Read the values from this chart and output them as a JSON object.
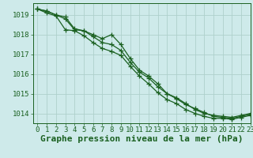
{
  "title": "Graphe pression niveau de la mer (hPa)",
  "background_color": "#ceeaea",
  "grid_color": "#aed0cc",
  "line_color": "#1a6020",
  "xlim": [
    -0.5,
    23
  ],
  "ylim": [
    1013.5,
    1019.6
  ],
  "yticks": [
    1014,
    1015,
    1016,
    1017,
    1018,
    1019
  ],
  "xticks": [
    0,
    1,
    2,
    3,
    4,
    5,
    6,
    7,
    8,
    9,
    10,
    11,
    12,
    13,
    14,
    15,
    16,
    17,
    18,
    19,
    20,
    21,
    22,
    23
  ],
  "series1": [
    1019.3,
    1019.2,
    1019.0,
    1018.9,
    1018.3,
    1018.2,
    1018.0,
    1017.8,
    1018.0,
    1017.5,
    1016.8,
    1016.2,
    1015.9,
    1015.5,
    1015.0,
    1014.8,
    1014.5,
    1014.2,
    1014.0,
    1013.9,
    1013.85,
    1013.8,
    1013.9,
    1014.0
  ],
  "series2": [
    1019.3,
    1019.2,
    1019.0,
    1018.8,
    1018.25,
    1018.2,
    1017.9,
    1017.6,
    1017.5,
    1017.2,
    1016.6,
    1016.1,
    1015.8,
    1015.35,
    1015.0,
    1014.75,
    1014.45,
    1014.25,
    1014.05,
    1013.85,
    1013.8,
    1013.75,
    1013.85,
    1013.95
  ],
  "series3": [
    1019.3,
    1019.1,
    1018.95,
    1018.25,
    1018.2,
    1017.95,
    1017.6,
    1017.3,
    1017.15,
    1016.95,
    1016.4,
    1015.9,
    1015.5,
    1015.05,
    1014.7,
    1014.5,
    1014.2,
    1014.0,
    1013.85,
    1013.75,
    1013.75,
    1013.7,
    1013.8,
    1013.9
  ],
  "title_fontsize": 8,
  "tick_fontsize": 6.5
}
